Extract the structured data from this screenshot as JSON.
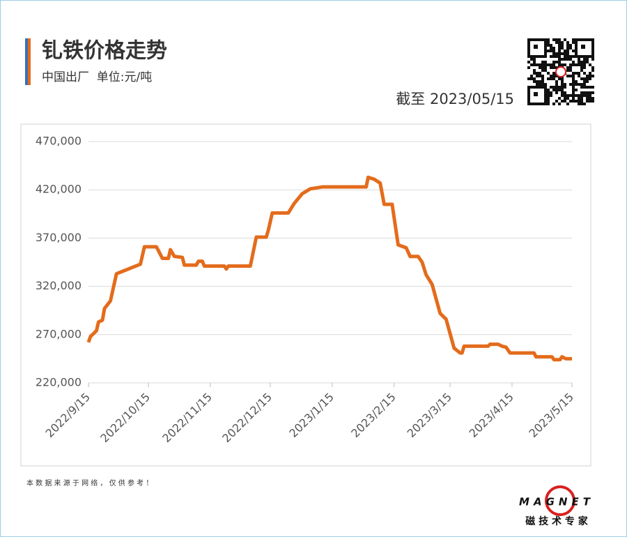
{
  "chart_data": {
    "type": "line",
    "title": "钆铁价格走势",
    "subtitle": "中国出厂  单位:元/吨",
    "annotation": "截至 2023/05/15",
    "source_note": "本 数 据 来 源 于 网 络 ， 仅 供 参 考 ！",
    "logo_text": "MAGNET",
    "logo_subtext": "磁 技 术 专 家",
    "x": [
      "2022/9/15",
      "2022/9/16",
      "2022/9/19",
      "2022/9/20",
      "2022/9/22",
      "2022/9/23",
      "2022/9/26",
      "2022/9/29",
      "2022/10/11",
      "2022/10/13",
      "2022/10/19",
      "2022/10/22",
      "2022/10/25",
      "2022/10/26",
      "2022/10/28",
      "2022/11/1",
      "2022/11/2",
      "2022/11/8",
      "2022/11/9",
      "2022/11/11",
      "2022/11/12",
      "2022/11/22",
      "2022/11/23",
      "2022/11/24",
      "2022/12/5",
      "2022/12/8",
      "2022/12/13",
      "2022/12/14",
      "2022/12/16",
      "2022/12/24",
      "2022/12/27",
      "2022/12/31",
      "2023/1/4",
      "2023/1/10",
      "2023/2/1",
      "2023/2/2",
      "2023/2/5",
      "2023/2/8",
      "2023/2/10",
      "2023/2/14",
      "2023/2/17",
      "2023/2/21",
      "2023/2/23",
      "2023/2/27",
      "2023/3/1",
      "2023/3/3",
      "2023/3/6",
      "2023/3/10",
      "2023/3/13",
      "2023/3/17",
      "2023/3/20",
      "2023/3/21",
      "2023/3/22",
      "2023/4/3",
      "2023/4/4",
      "2023/4/8",
      "2023/4/10",
      "2023/4/12",
      "2023/4/14",
      "2023/4/26",
      "2023/4/27",
      "2023/5/5",
      "2023/5/6",
      "2023/5/9",
      "2023/5/10",
      "2023/5/12",
      "2023/5/15"
    ],
    "series": [
      {
        "name": "钆铁",
        "color": "#e36c1c",
        "values": [
          262000,
          268000,
          274000,
          283000,
          285000,
          297000,
          305000,
          333000,
          343000,
          361000,
          361000,
          349000,
          349000,
          358000,
          351000,
          350000,
          342000,
          342000,
          346000,
          346000,
          341000,
          341000,
          338000,
          341000,
          341000,
          371000,
          371000,
          378000,
          396000,
          396000,
          406000,
          416000,
          421000,
          423000,
          423000,
          433000,
          431000,
          427000,
          405000,
          405000,
          363000,
          360000,
          351000,
          351000,
          345000,
          332000,
          322000,
          292000,
          286000,
          256000,
          251000,
          251000,
          258000,
          258000,
          260000,
          260000,
          258000,
          257000,
          251000,
          251000,
          247000,
          247000,
          244000,
          244000,
          247000,
          245000,
          245000
        ]
      }
    ],
    "xlim": [
      "2022/9/15",
      "2023/5/15"
    ],
    "xticks": [
      "2022/9/15",
      "2022/10/15",
      "2022/11/15",
      "2022/12/15",
      "2023/1/15",
      "2023/2/15",
      "2023/3/15",
      "2023/4/15",
      "2023/5/15"
    ],
    "ylim": [
      220000,
      470000
    ],
    "yticks": [
      {
        "value": 220000,
        "label": "220,000"
      },
      {
        "value": 270000,
        "label": "270,000"
      },
      {
        "value": 320000,
        "label": "320,000"
      },
      {
        "value": 370000,
        "label": "370,000"
      },
      {
        "value": 420000,
        "label": "420,000"
      },
      {
        "value": 470000,
        "label": "470,000"
      }
    ],
    "grid": true
  }
}
